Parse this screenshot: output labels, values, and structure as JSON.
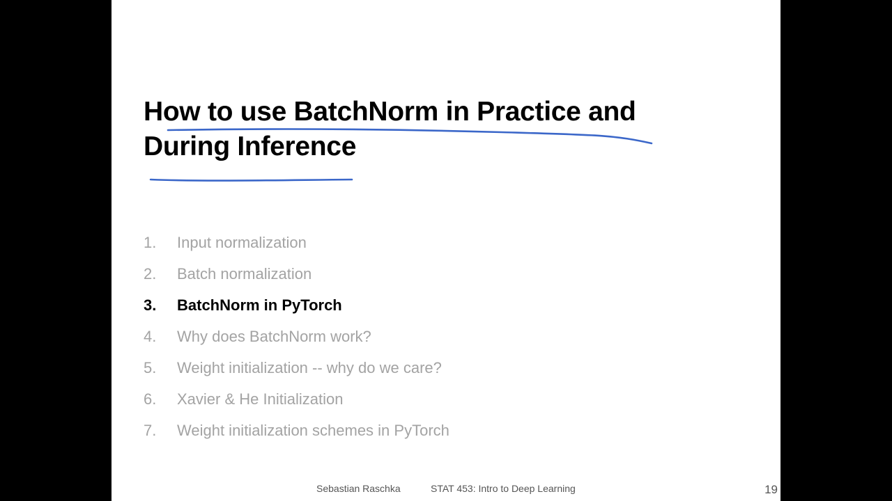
{
  "slide": {
    "title_line1": "How to use BatchNorm in Practice and",
    "title_line2": "During Inference",
    "annotation_color": "#3b67c9",
    "agenda": [
      {
        "num": "1.",
        "label": "Input normalization",
        "current": false
      },
      {
        "num": "2.",
        "label": "Batch normalization",
        "current": false
      },
      {
        "num": "3.",
        "label": "BatchNorm in PyTorch",
        "current": true
      },
      {
        "num": "4.",
        "label": "Why does BatchNorm work?",
        "current": false
      },
      {
        "num": "5.",
        "label": "Weight initialization -- why do we care?",
        "current": false
      },
      {
        "num": "6.",
        "label": "Xavier & He Initialization",
        "current": false
      },
      {
        "num": "7.",
        "label": "Weight initialization schemes in PyTorch",
        "current": false
      }
    ]
  },
  "footer": {
    "author": "Sebastian Raschka",
    "course": "STAT 453: Intro to Deep Learning",
    "page_number": "19"
  }
}
